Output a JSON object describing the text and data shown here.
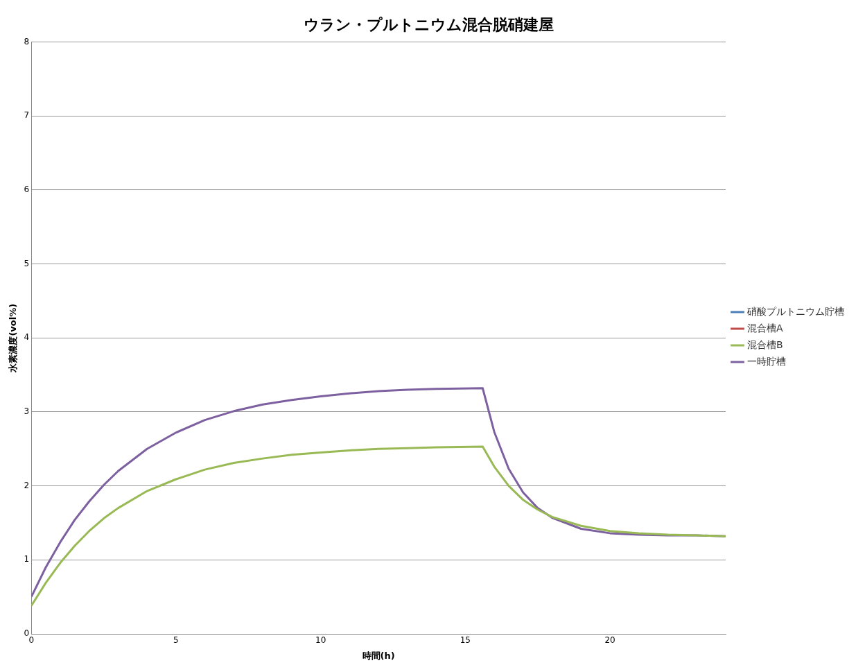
{
  "chart_data": {
    "type": "line",
    "title": "ウラン・プルトニウム混合脱硝建屋",
    "xlabel": "時間(h)",
    "ylabel": "水素濃度(vol%)",
    "x": [
      0,
      0.5,
      1,
      1.5,
      2,
      2.5,
      3,
      4,
      5,
      6,
      7,
      8,
      9,
      10,
      11,
      12,
      13,
      14,
      15.6,
      16,
      16.5,
      17,
      17.5,
      18,
      19,
      20,
      21,
      22,
      23,
      24
    ],
    "series": [
      {
        "name": "硝酸プルトニウム貯槽",
        "color": "#4a7ebb",
        "values": [
          null,
          null,
          null,
          null,
          null,
          null,
          null,
          null,
          null,
          null,
          null,
          null,
          null,
          null,
          null,
          null,
          null,
          null,
          null,
          null,
          null,
          null,
          null,
          null,
          null,
          null,
          null,
          null,
          null,
          null
        ]
      },
      {
        "name": "混合槽A",
        "color": "#be4b48",
        "values": [
          null,
          null,
          null,
          null,
          null,
          null,
          null,
          null,
          null,
          null,
          null,
          null,
          null,
          null,
          null,
          null,
          null,
          null,
          null,
          null,
          null,
          null,
          null,
          null,
          null,
          null,
          null,
          null,
          null,
          null
        ]
      },
      {
        "name": "混合槽B",
        "color": "#98b954",
        "values": [
          0.38,
          0.69,
          0.96,
          1.19,
          1.39,
          1.56,
          1.7,
          1.93,
          2.09,
          2.22,
          2.31,
          2.37,
          2.42,
          2.45,
          2.48,
          2.5,
          2.51,
          2.52,
          2.53,
          2.26,
          2.0,
          1.81,
          1.68,
          1.58,
          1.46,
          1.39,
          1.36,
          1.34,
          1.33,
          1.32
        ]
      },
      {
        "name": "一時貯槽",
        "color": "#7d60a0",
        "values": [
          0.5,
          0.9,
          1.24,
          1.54,
          1.79,
          2.01,
          2.2,
          2.5,
          2.72,
          2.89,
          3.01,
          3.1,
          3.16,
          3.21,
          3.25,
          3.28,
          3.3,
          3.31,
          3.32,
          2.73,
          2.23,
          1.91,
          1.7,
          1.57,
          1.42,
          1.36,
          1.34,
          1.33,
          1.33,
          1.32
        ]
      }
    ],
    "xlim": [
      0,
      24
    ],
    "xticks": [
      0,
      5,
      10,
      15,
      20
    ],
    "ylim": [
      0,
      8
    ],
    "yticks": [
      0,
      1,
      2,
      3,
      4,
      5,
      6,
      7,
      8
    ],
    "grid": "y",
    "legend": "right",
    "marker": "none",
    "line_style": "solid"
  }
}
